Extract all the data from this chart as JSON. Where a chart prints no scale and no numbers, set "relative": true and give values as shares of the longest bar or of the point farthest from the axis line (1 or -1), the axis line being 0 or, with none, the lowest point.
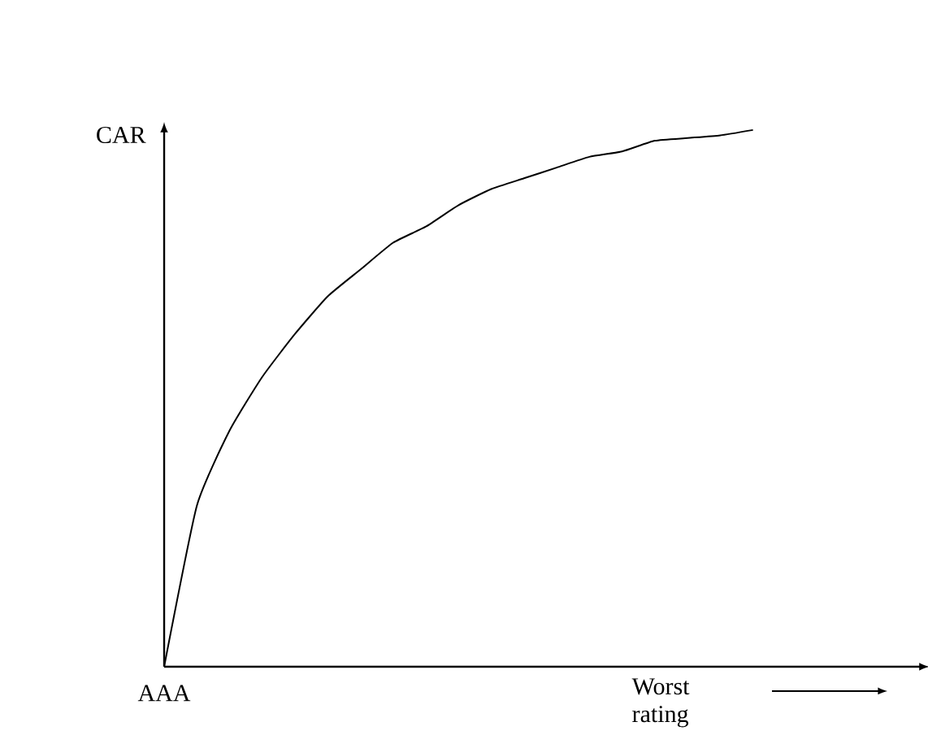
{
  "chart_data": {
    "type": "line",
    "relative": true,
    "xlabel": "Worst rating",
    "ylabel": "CAR",
    "annotations": [
      "AAA"
    ],
    "categories": [
      null,
      null,
      null,
      null,
      null,
      null,
      null,
      null,
      null,
      null,
      null,
      null,
      null,
      null,
      null,
      null,
      null,
      null,
      null
    ],
    "values": [
      0,
      0.3,
      0.44,
      0.54,
      0.62,
      0.69,
      0.74,
      0.79,
      0.82,
      0.86,
      0.89,
      0.91,
      0.93,
      0.95,
      0.96,
      0.98,
      0.985,
      0.99,
      1
    ],
    "color": "#000000"
  }
}
